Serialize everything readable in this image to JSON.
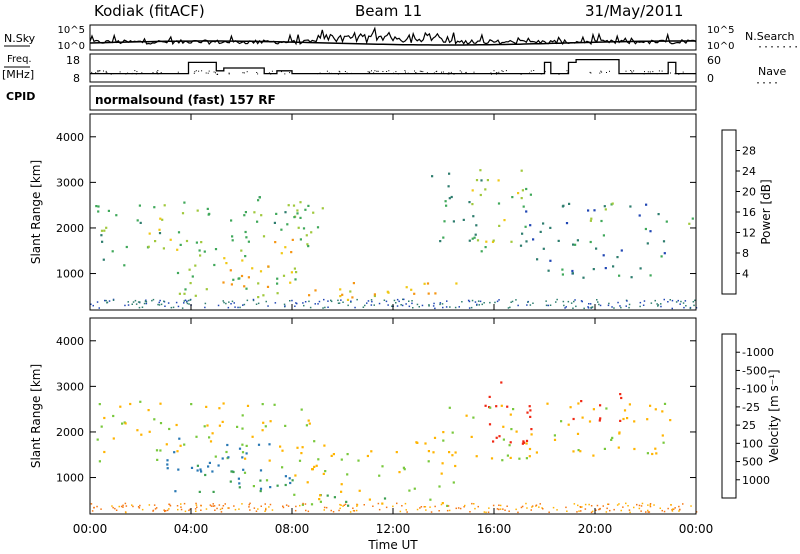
{
  "header": {
    "station": "Kodiak (fitACF)",
    "beam": "Beam 11",
    "date": "31/May/2011"
  },
  "left_labels": {
    "nsky": "N.Sky",
    "freq": "Freq.",
    "freq_unit": "[MHz]",
    "cpid": "CPID"
  },
  "right_labels": {
    "nsearch": "N.Search",
    "nave": "Nave"
  },
  "cpid_text": "normalsound (fast) 157 RF",
  "chart_data": [
    {
      "type": "line",
      "name": "noise-panel",
      "ylabel_left": "N.Sky",
      "ylabel_right": "N.Search",
      "left_ticks": [
        "10^5",
        "10^0"
      ],
      "right_ticks": [
        "10^5",
        "10^0"
      ]
    },
    {
      "type": "line",
      "name": "freq-panel",
      "left_ticks": [
        "18",
        "8"
      ],
      "right_ticks": [
        "60",
        "0"
      ],
      "freq_ylim": [
        8,
        18
      ],
      "nave_ylim": [
        0,
        60
      ],
      "freq_steps": [
        {
          "t": 0.0,
          "f": 11
        },
        {
          "t": 3.9,
          "f": 11
        },
        {
          "t": 3.9,
          "f": 15
        },
        {
          "t": 5.0,
          "f": 15
        },
        {
          "t": 5.0,
          "f": 12
        },
        {
          "t": 5.3,
          "f": 12
        },
        {
          "t": 5.3,
          "f": 13
        },
        {
          "t": 6.9,
          "f": 13
        },
        {
          "t": 6.9,
          "f": 11
        },
        {
          "t": 7.4,
          "f": 11
        },
        {
          "t": 7.4,
          "f": 12
        },
        {
          "t": 8.0,
          "f": 12
        },
        {
          "t": 8.0,
          "f": 11
        },
        {
          "t": 18.0,
          "f": 11
        },
        {
          "t": 18.0,
          "f": 15
        },
        {
          "t": 18.25,
          "f": 15
        },
        {
          "t": 18.25,
          "f": 11
        },
        {
          "t": 18.95,
          "f": 11
        },
        {
          "t": 18.95,
          "f": 15
        },
        {
          "t": 19.25,
          "f": 15
        },
        {
          "t": 19.25,
          "f": 16
        },
        {
          "t": 20.95,
          "f": 16
        },
        {
          "t": 20.95,
          "f": 11
        },
        {
          "t": 22.9,
          "f": 11
        },
        {
          "t": 22.9,
          "f": 15
        },
        {
          "t": 23.2,
          "f": 15
        },
        {
          "t": 23.2,
          "f": 11
        },
        {
          "t": 24.0,
          "f": 11
        }
      ]
    },
    {
      "type": "heatmap",
      "name": "power-panel",
      "ylabel": "Slant Range [km]",
      "yticks": [
        1000,
        2000,
        3000,
        4000
      ],
      "ylim": [
        200,
        4500
      ],
      "colorbar_label": "Power [dB]",
      "colorbar_ticks": [
        "4",
        "8",
        "12",
        "16",
        "20",
        "24",
        "28"
      ],
      "colorbar_colors": [
        "#1414e6",
        "#2046b4",
        "#2e7d6e",
        "#3fa85a",
        "#a0c83c",
        "#f0c814",
        "#f59614",
        "#f05014",
        "#e61414"
      ],
      "echo_regions": [
        {
          "t0": 0.2,
          "t1": 3.0,
          "r0": 1200,
          "r1": 2600,
          "level": 12
        },
        {
          "t0": 2.0,
          "t1": 3.6,
          "r0": 1500,
          "r1": 2400,
          "level": 18
        },
        {
          "t0": 3.4,
          "t1": 8.5,
          "r0": 500,
          "r1": 2700,
          "level": 14
        },
        {
          "t0": 5.0,
          "t1": 8.0,
          "r0": 600,
          "r1": 1800,
          "level": 22
        },
        {
          "t0": 6.0,
          "t1": 9.5,
          "r0": 1600,
          "r1": 2700,
          "level": 12
        },
        {
          "t0": 8.2,
          "t1": 14.5,
          "r0": 400,
          "r1": 900,
          "level": 20
        },
        {
          "t0": 9.5,
          "t1": 12.0,
          "r0": 500,
          "r1": 700,
          "level": 26
        },
        {
          "t0": 13.5,
          "t1": 15.5,
          "r0": 1500,
          "r1": 3300,
          "level": 10
        },
        {
          "t0": 15.0,
          "t1": 17.5,
          "r0": 1500,
          "r1": 3300,
          "level": 16
        },
        {
          "t0": 17.0,
          "t1": 23.0,
          "r0": 900,
          "r1": 2600,
          "level": 8
        },
        {
          "t0": 19.5,
          "t1": 21.0,
          "r0": 2000,
          "r1": 2600,
          "level": 14
        },
        {
          "t0": 23.0,
          "t1": 23.9,
          "r0": 1800,
          "r1": 2300,
          "level": 16
        }
      ]
    },
    {
      "type": "heatmap",
      "name": "velocity-panel",
      "ylabel": "Slant Range [km]",
      "yticks": [
        1000,
        2000,
        3000,
        4000
      ],
      "ylim": [
        200,
        4500
      ],
      "colorbar_label": "Velocity [m s⁻¹]",
      "colorbar_ticks": [
        "1000",
        "500",
        "100",
        "25",
        "-25",
        "-100",
        "-500",
        "-1000"
      ],
      "colorbar_colors": [
        "#1432c8",
        "#2878b4",
        "#3ca050",
        "#78c83c",
        "#c8c8c8",
        "#ffb400",
        "#f57814",
        "#f02814",
        "#e60000"
      ],
      "echo_regions": [
        {
          "t0": 0.2,
          "t1": 9.0,
          "r0": 1200,
          "r1": 2700,
          "level": 0
        },
        {
          "t0": 3.0,
          "t1": 8.0,
          "r0": 700,
          "r1": 1900,
          "level": 500
        },
        {
          "t0": 4.0,
          "t1": 8.0,
          "r0": 600,
          "r1": 1300,
          "level": 100
        },
        {
          "t0": 8.0,
          "t1": 12.0,
          "r0": 400,
          "r1": 700,
          "level": 100
        },
        {
          "t0": 8.0,
          "t1": 14.5,
          "r0": 400,
          "r1": 1900,
          "level": 0
        },
        {
          "t0": 15.5,
          "t1": 17.5,
          "r0": 1500,
          "r1": 3300,
          "level": -500
        },
        {
          "t0": 13.5,
          "t1": 23.0,
          "r0": 1400,
          "r1": 2700,
          "level": 0
        },
        {
          "t0": 19.0,
          "t1": 21.0,
          "r0": 2200,
          "r1": 2900,
          "level": -500
        }
      ]
    }
  ],
  "xaxis": {
    "ticks": [
      "00:00",
      "04:00",
      "08:00",
      "12:00",
      "16:00",
      "20:00",
      "00:00"
    ],
    "label": "Time UT"
  }
}
